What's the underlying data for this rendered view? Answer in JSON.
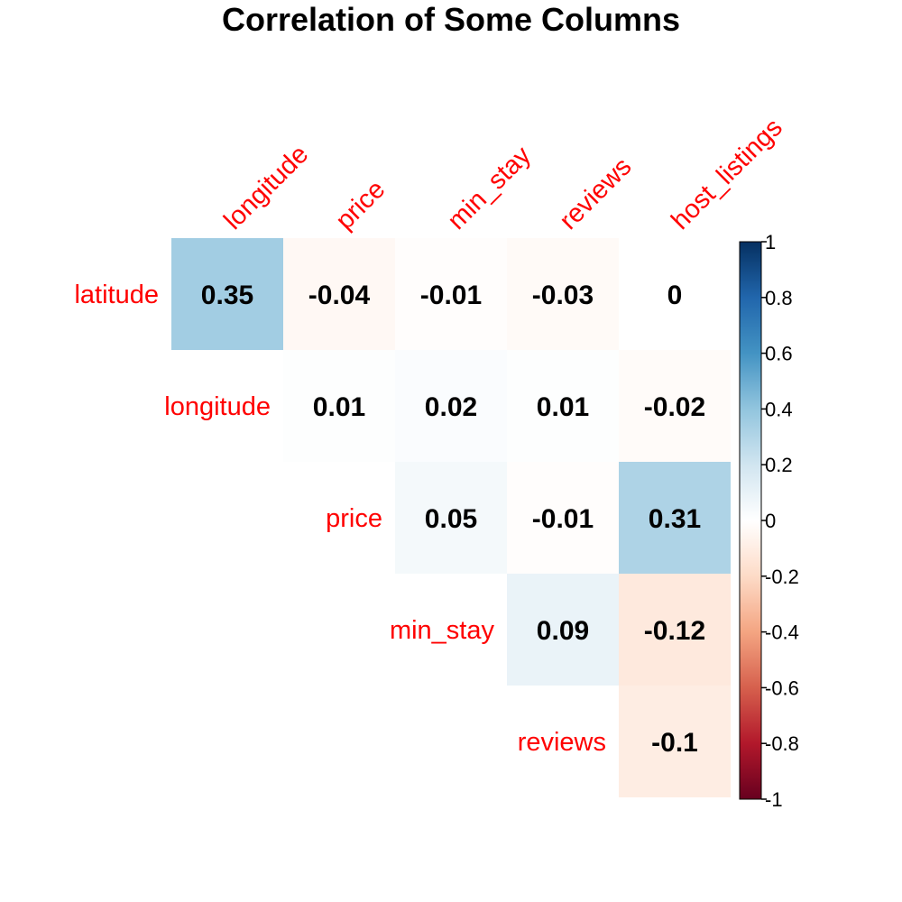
{
  "chart_data": {
    "type": "heatmap",
    "title": "Correlation of Some Columns",
    "rows": [
      "latitude",
      "longitude",
      "price",
      "min_stay",
      "reviews"
    ],
    "columns": [
      "longitude",
      "price",
      "min_stay",
      "reviews",
      "host_listings"
    ],
    "layout": "upper-triangular",
    "cells": [
      [
        0.35,
        -0.04,
        -0.01,
        -0.03,
        0
      ],
      [
        null,
        0.01,
        0.02,
        0.01,
        -0.02
      ],
      [
        null,
        null,
        0.05,
        -0.01,
        0.31
      ],
      [
        null,
        null,
        null,
        0.09,
        -0.12
      ],
      [
        null,
        null,
        null,
        null,
        -0.1
      ]
    ],
    "colorbar": {
      "range": [
        -1,
        1
      ],
      "ticks": [
        "1",
        "0.8",
        "0.6",
        "0.4",
        "0.2",
        "0",
        "-0.2",
        "-0.4",
        "-0.6",
        "-0.8",
        "-1"
      ],
      "palette": [
        "#67001F",
        "#B2182B",
        "#D6604D",
        "#F4A582",
        "#FDDBC7",
        "#FFFFFF",
        "#D1E5F0",
        "#92C5DE",
        "#4393C3",
        "#2166AC",
        "#053061"
      ]
    },
    "label_color": "#FF0000",
    "grid": false
  }
}
